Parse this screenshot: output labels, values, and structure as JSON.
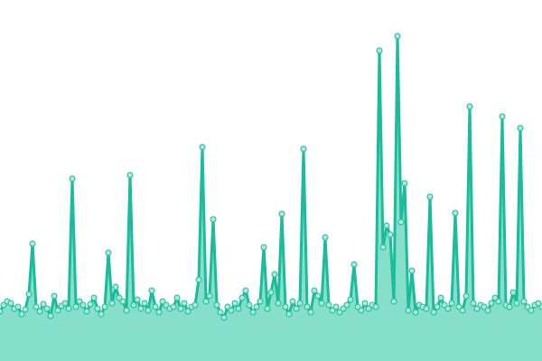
{
  "chart_data": {
    "type": "area",
    "values": [
      55,
      62,
      66,
      64,
      58,
      60,
      52,
      57,
      74,
      130,
      60,
      55,
      63,
      58,
      50,
      72,
      56,
      61,
      64,
      58,
      202,
      60,
      66,
      62,
      55,
      63,
      70,
      58,
      52,
      60,
      120,
      64,
      82,
      70,
      66,
      56,
      206,
      62,
      68,
      58,
      64,
      56,
      78,
      60,
      54,
      66,
      62,
      58,
      60,
      70,
      58,
      64,
      55,
      60,
      62,
      90,
      237,
      66,
      72,
      157,
      62,
      54,
      48,
      60,
      56,
      64,
      58,
      70,
      78,
      62,
      54,
      60,
      66,
      126,
      58,
      76,
      96,
      64,
      163,
      60,
      52,
      66,
      58,
      64,
      235,
      60,
      54,
      78,
      72,
      64,
      137,
      62,
      56,
      60,
      54,
      58,
      62,
      68,
      107,
      60,
      56,
      64,
      58,
      62,
      60,
      344,
      126,
      150,
      140,
      66,
      360,
      154,
      197,
      56,
      100,
      54,
      62,
      60,
      58,
      182,
      54,
      60,
      70,
      62,
      58,
      64,
      164,
      60,
      56,
      72,
      282,
      64,
      58,
      62,
      60,
      56,
      64,
      70,
      66,
      271,
      62,
      60,
      76,
      64,
      258,
      66,
      60,
      56,
      62,
      64,
      60
    ],
    "ylim": [
      0,
      400
    ],
    "color": "#1abc9c",
    "fill_color": "#86e0c9",
    "marker_color": "#a8ead8"
  }
}
